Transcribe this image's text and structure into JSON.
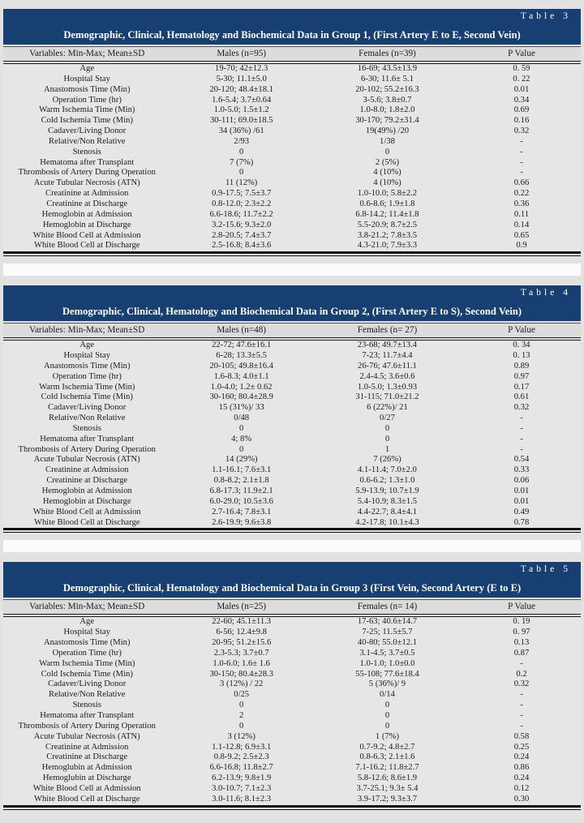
{
  "page": {
    "background_color": "#e2e2e2",
    "title_band_color": "#173f72",
    "title_band_text_color": "#ffffff",
    "header_row_color": "#dcdcdc",
    "body_row_color": "#e6e6e6"
  },
  "tables": [
    {
      "tag": "Table 3",
      "title": "Demographic, Clinical, Hematology and Biochemical Data in Group 1, (First Artery E to E, Second Vein)",
      "columns": [
        "Variables: Min-Max; Mean±SD",
        "Males (n=95)",
        "Females (n=39)",
        "P Value"
      ],
      "rows": [
        [
          "Age",
          "19-70; 42±12.3",
          "16-69; 43.5±13.9",
          "0. 59"
        ],
        [
          "Hospital Stay",
          "5-30; 11.1±5.0",
          "6-30; 11.6± 5.1",
          "0. 22"
        ],
        [
          "Anastomosis Time (Min)",
          "20-120; 48.4±18.1",
          "20-102; 55.2±16.3",
          "0.01"
        ],
        [
          "Operation Time (hr)",
          "1.6-5.4; 3.7±0.64",
          "3-5.6; 3.8±0.7",
          "0.34"
        ],
        [
          "Warm Ischemia Time (Min)",
          "1.0-5.0; 1.5±1.2",
          "1.0-8.0; 1.8±2.0",
          "0.69"
        ],
        [
          "Cold  Ischemia Time (Min)",
          "30-111; 69.0±18.5",
          "30-170; 79.2±31.4",
          "0.16"
        ],
        [
          "Cadaver/Living Donor",
          "34 (36%)  /61",
          "19(49%)  /20",
          "0.32"
        ],
        [
          "Relative/Non Relative",
          "2/93",
          "1/38",
          "-"
        ],
        [
          "Stenosis",
          "0",
          "0",
          "-"
        ],
        [
          "Hematoma after Transplant",
          "7 (7%)",
          "2 (5%)",
          "-"
        ],
        [
          "Thrombosis of Artery During Operation",
          "0",
          "4 (10%)",
          "-"
        ],
        [
          "Acute Tubular Necrosis (ATN)",
          "11 (12%)",
          "4 (10%)",
          "0.66"
        ],
        [
          "Creatinine at Admission",
          "0.9-17.5; 7.5±3.7",
          "1.0-10.0; 5.8±2.2",
          "0.22"
        ],
        [
          "Creatinine at Discharge",
          "0.8-12.0; 2.3±2.2",
          "0.6-8.6; 1.9±1.8",
          "0.36"
        ],
        [
          "Hemoglobin at Admission",
          "6.6-18.6; 11.7±2.2",
          "6.8-14.2; 11.4±1.8",
          "0.11"
        ],
        [
          "Hemoglobin at Discharge",
          "3.2-15.6; 9.3±2.0",
          "5.5-20.9; 8.7±2.5",
          "0.14"
        ],
        [
          "White Blood Cell at Admission",
          "2.8-20.5; 7.4±3.7",
          "3.8-21.2; 7.8±3.5",
          "0.65"
        ],
        [
          "White Blood Cell at Discharge",
          "2.5-16.8; 8.4±3.6",
          "4.3-21.0; 7.9±3.3",
          "0.9"
        ]
      ]
    },
    {
      "tag": "Table 4",
      "title": "Demographic, Clinical, Hematology and Biochemical Data in Group 2, (First Artery E to S), Second Vein)",
      "columns": [
        "Variables: Min-Max; Mean±SD",
        "Males (n=48)",
        "Females (n= 27)",
        "P Value"
      ],
      "rows": [
        [
          "Age",
          "22-72; 47.6±16.1",
          "23-68; 49.7±13.4",
          "0. 34"
        ],
        [
          "Hospital Stay",
          "6-28; 13.3±5.5",
          "7-23; 11.7±4.4",
          "0. 13"
        ],
        [
          "Anastomosis Time (Min)",
          "20-105; 49.8±16.4",
          "26-76; 47.6±11.1",
          "0.89"
        ],
        [
          "Operation Time (hr)",
          "1.6-8.3; 4.0±1.1",
          "2.4-4.5; 3.6±0.6",
          "0.97"
        ],
        [
          "Warm Ischemia Time (Min)",
          "1.0-4.0; 1.2± 0.62",
          "1.0-5.0; 1.3±0.93",
          "0.17"
        ],
        [
          "Cold  Ischemia Time (Min)",
          "30-160; 80.4±28.9",
          "31-115; 71.0±21.2",
          "0.61"
        ],
        [
          "Cadaver/Living Donor",
          "15 (31%)/  33",
          "6 (22%)/  21",
          "0.32"
        ],
        [
          "Relative/Non Relative",
          "0/48",
          "0/27",
          "-"
        ],
        [
          "Stenosis",
          "0",
          "0",
          "-"
        ],
        [
          "Hematoma after Transplant",
          "4; 8%",
          "0",
          "-"
        ],
        [
          "Thrombosis of Artery During Operation",
          "0",
          "1",
          "-"
        ],
        [
          "Acute Tubular Necrosis (ATN)",
          "14 (29%)",
          "7 (26%)",
          "0.54"
        ],
        [
          "Creatinine at Admission",
          "1.1-16.1; 7.6±3.1",
          "4.1-11.4; 7.0±2.0",
          "0.33"
        ],
        [
          "Creatinine at Discharge",
          "0.8-8.2; 2.1±1.8",
          "0.6-6.2; 1.3±1.0",
          "0.06"
        ],
        [
          "Hemoglobin at Admission",
          "6.8-17.3; 11.9±2.1",
          "5.9-13.9; 10.7±1.9",
          "0.01"
        ],
        [
          "Hemoglobin at Discharge",
          "6.0-29.0; 10.5±3.6",
          "5.4-10.9; 8.3±1.5",
          "0.01"
        ],
        [
          "White Blood Cell at Admission",
          "2.7-16.4; 7.8±3.1",
          "4.4-22.7; 8.4±4.1",
          "0.49"
        ],
        [
          "White Blood Cell at Discharge",
          "2.6-19.9; 9.6±3.8",
          "4.2-17.8; 10.1±4.3",
          "0.78"
        ]
      ]
    },
    {
      "tag": "Table 5",
      "title": "Demographic, Clinical, Hematology and Biochemical Data in Group 3 (First Vein, Second Artery (E to E)",
      "columns": [
        "Variables: Min-Max; Mean±SD",
        "Males (n=25)",
        "Females (n= 14)",
        "P Value"
      ],
      "rows": [
        [
          "Age",
          "22-60; 45.1±11.3",
          "17-63; 40.6±14.7",
          "0. 19"
        ],
        [
          "Hospital Stay",
          "6-56; 12.4±9.8",
          "7-25; 11.5±5.7",
          "0. 97"
        ],
        [
          "Anastomosis Time (Min)",
          "20-95; 51.2±15.6",
          "40-80; 55.0±12.1",
          "0.13"
        ],
        [
          "Operation Time (hr)",
          "2.3-5.3; 3.7±0.7",
          "3.1-4.5; 3.7±0.5",
          "0.87"
        ],
        [
          "Warm Ischemia Time (Min)",
          "1.0-6.0; 1.6± 1.6",
          "1.0-1.0; 1.0±0.0",
          "-"
        ],
        [
          "Cold Ischemia Time (Min)",
          "30-150; 80.4±28.3",
          "55-108; 77.6±18.4",
          "0.2"
        ],
        [
          "Cadaver/Living Donor",
          "3 (12%) / 22",
          "5 (36%)/  9",
          "0.32"
        ],
        [
          "Relative/Non Relative",
          "0/25",
          "0/14",
          "-"
        ],
        [
          "Stenosis",
          "0",
          "0",
          "-"
        ],
        [
          "Hematoma after Transplant",
          "2",
          "0",
          "-"
        ],
        [
          "Thrombosis of Artery During Operation",
          "0",
          "0",
          "-"
        ],
        [
          "Acute Tubular Necrosis (ATN)",
          "3 (12%)",
          "1  (7%)",
          "0.58"
        ],
        [
          "Creatinine at Admission",
          "1.1-12.8; 6.9±3.1",
          "0.7-9.2; 4.8±2.7",
          "0.25"
        ],
        [
          "Creatinine at Discharge",
          "0.8-9.2; 2.5±2.3",
          "0.8-6.3; 2.1±1.6",
          "0.24"
        ],
        [
          "Hemoglubin at Admission",
          "6.6-16.8; 11.8±2.7",
          "7.1-16.2; 11.8±2.7",
          "0.86"
        ],
        [
          "Hemoglubin at Discharge",
          "6.2-13.9; 9.8±1.9",
          "5.8-12.6; 8.6±1.9",
          "0.24"
        ],
        [
          "White Blood Cell at Admission",
          "3.0-10.7; 7.1±2.3",
          "3.7-25.1; 9.3± 5.4",
          "0.12"
        ],
        [
          "White Blood Cell at Discharge",
          "3.0-11.6; 8.1±2.3",
          "3.9-17.2; 9.3±3.7",
          "0.30"
        ]
      ]
    }
  ]
}
